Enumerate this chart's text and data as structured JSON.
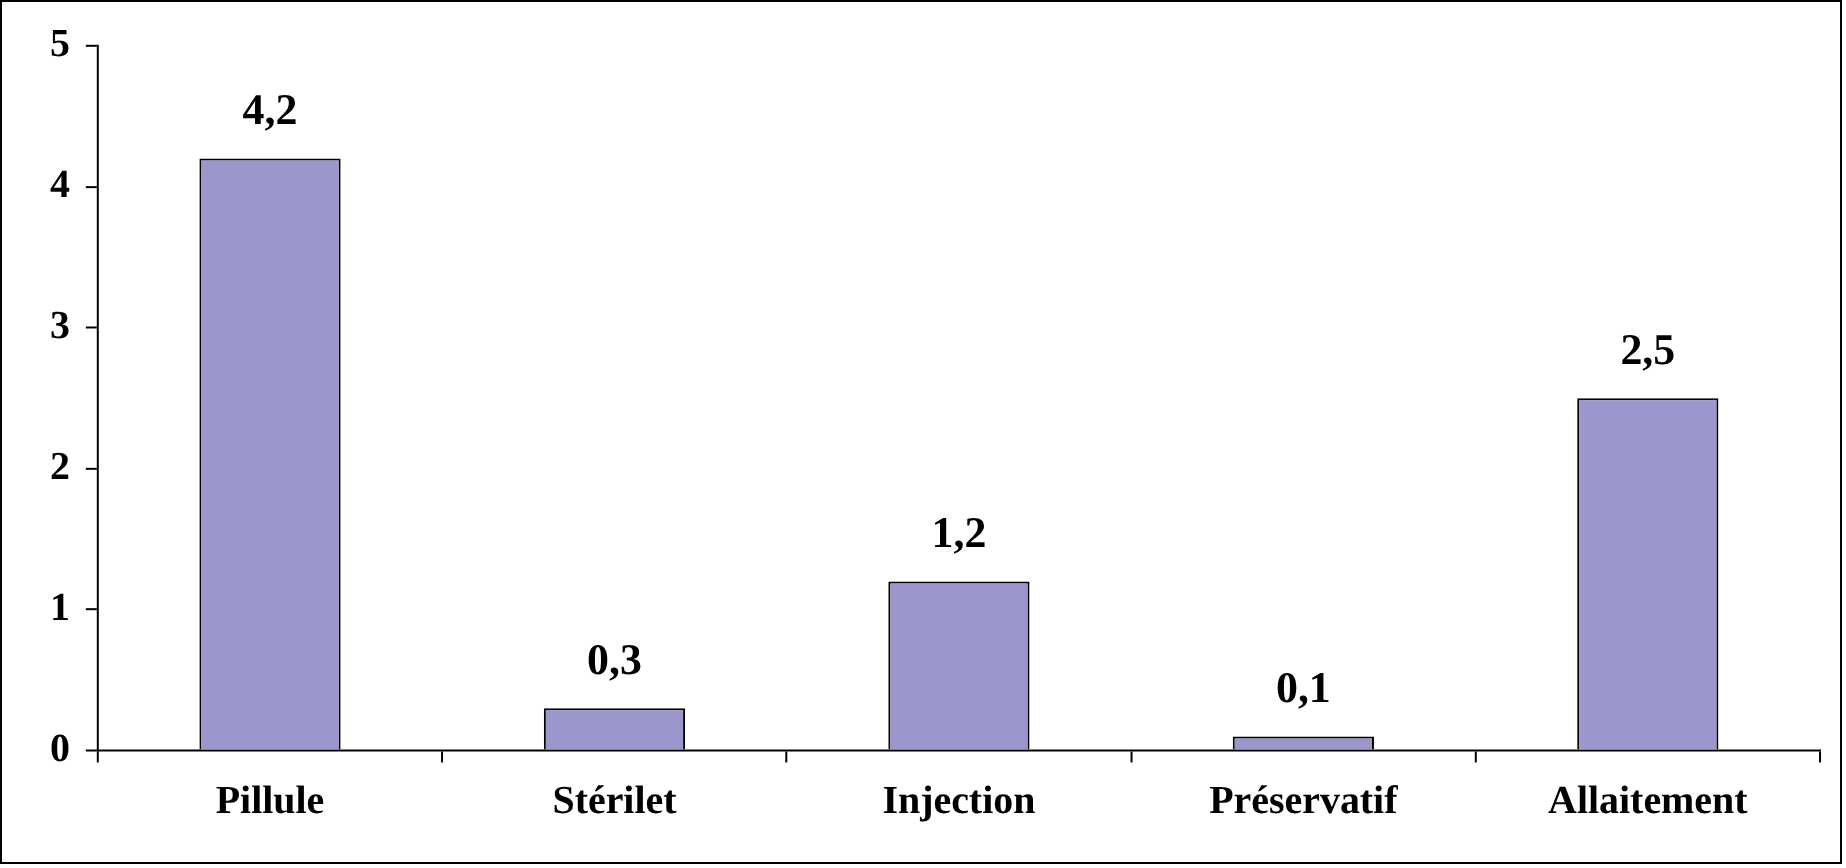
{
  "chart_data": {
    "type": "bar",
    "categories": [
      "Pillule",
      "Stérilet",
      "Injection",
      "Préservatif",
      "Allaitement"
    ],
    "values": [
      4.2,
      0.3,
      1.2,
      0.1,
      2.5
    ],
    "value_labels": [
      "4,2",
      "0,3",
      "1,2",
      "0,1",
      "2,5"
    ],
    "color": "#9b97cc",
    "ylim": [
      0,
      5
    ],
    "yticks": [
      0,
      1,
      2,
      3,
      4,
      5
    ],
    "grid": false,
    "legend": false
  }
}
